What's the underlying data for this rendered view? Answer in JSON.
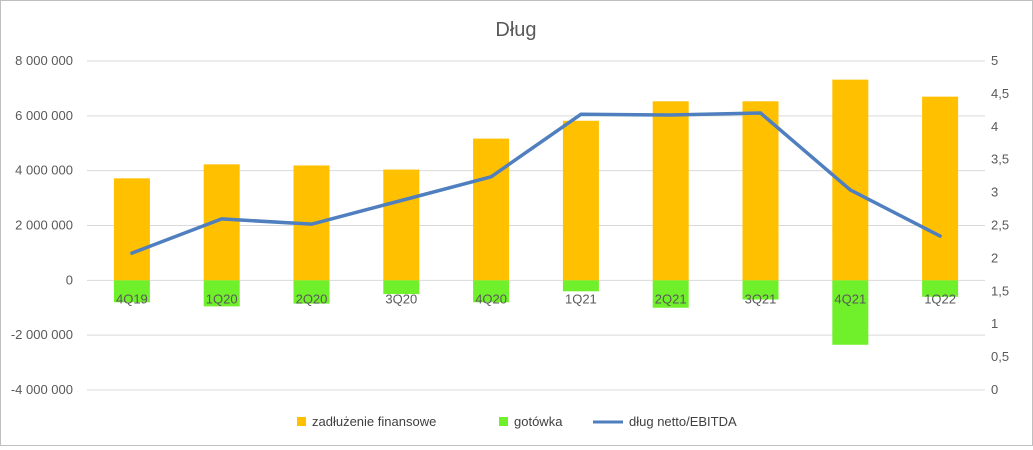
{
  "chart_data": {
    "type": "bar",
    "title": "Dług",
    "categories": [
      "4Q19",
      "1Q20",
      "2Q20",
      "3Q20",
      "4Q20",
      "1Q21",
      "2Q21",
      "3Q21",
      "4Q21",
      "1Q22"
    ],
    "series": [
      {
        "name": "zadłużenie finansowe",
        "type": "bar",
        "axis": "left",
        "color": "#FFC000",
        "values": [
          3720000,
          4230000,
          4190000,
          4040000,
          5170000,
          5820000,
          6530000,
          6530000,
          7320000,
          6700000
        ]
      },
      {
        "name": "gotówka",
        "type": "bar",
        "axis": "left",
        "color": "#70F02A",
        "values": [
          -800000,
          -950000,
          -850000,
          -500000,
          -800000,
          -400000,
          -1000000,
          -700000,
          -2350000,
          -600000
        ]
      },
      {
        "name": "dług netto/EBITDA",
        "type": "line",
        "axis": "right",
        "color": "#4F7FBF",
        "values": [
          2.08,
          2.6,
          2.52,
          2.88,
          3.24,
          4.19,
          4.18,
          4.21,
          3.04,
          2.34
        ]
      }
    ],
    "y_left": {
      "min": -4000000,
      "max": 8000000,
      "step": 2000000,
      "tick_labels": [
        "-4 000 000",
        "-2 000 000",
        "0",
        "2 000 000",
        "4 000 000",
        "6 000 000",
        "8 000 000"
      ]
    },
    "y_right": {
      "min": 0,
      "max": 5,
      "step": 0.5,
      "tick_labels": [
        "0",
        "0,5",
        "1",
        "1,5",
        "2",
        "2,5",
        "3",
        "3,5",
        "4",
        "4,5",
        "5"
      ]
    },
    "grid": true,
    "legend": "bottom"
  }
}
